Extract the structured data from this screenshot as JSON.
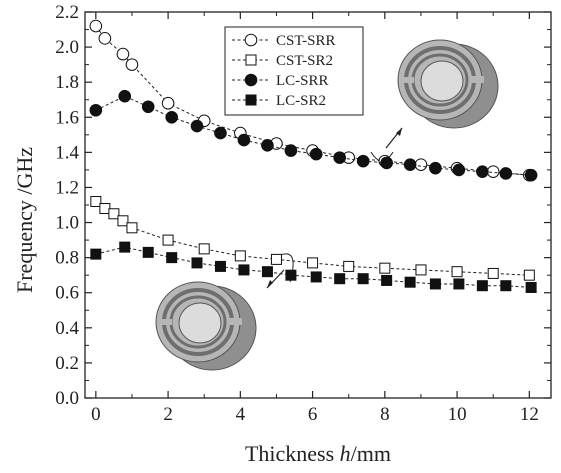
{
  "chart_data": {
    "type": "scatter",
    "xlabel_prefix": "Thickness ",
    "xlabel_var": "h",
    "xlabel_unit": "/mm",
    "ylabel": "Frequency /GHz",
    "xlim": [
      -0.3,
      12.6
    ],
    "ylim": [
      0.0,
      2.2
    ],
    "x_ticks": [
      "0",
      "2",
      "4",
      "6",
      "8",
      "10",
      "12"
    ],
    "y_ticks": [
      "0.0",
      "0.2",
      "0.4",
      "0.6",
      "0.8",
      "1.0",
      "1.2",
      "1.4",
      "1.6",
      "1.8",
      "2.0",
      "2.2"
    ],
    "legend_position": "top-center",
    "series": [
      {
        "name": "CST-SRR",
        "marker": "circle-open",
        "x": [
          0,
          0.25,
          0.75,
          1.0,
          2.0,
          3.0,
          4.0,
          5.0,
          6.0,
          7.0,
          8.0,
          9.0,
          10.0,
          11.0,
          12.0
        ],
        "y": [
          2.12,
          2.05,
          1.96,
          1.9,
          1.68,
          1.58,
          1.51,
          1.45,
          1.41,
          1.37,
          1.35,
          1.33,
          1.31,
          1.29,
          1.27
        ]
      },
      {
        "name": "CST-SR2",
        "marker": "square-open",
        "x": [
          0,
          0.25,
          0.5,
          0.75,
          1.0,
          2.0,
          3.0,
          4.0,
          5.0,
          6.0,
          7.0,
          8.0,
          9.0,
          10.0,
          11.0,
          12.0
        ],
        "y": [
          1.12,
          1.08,
          1.05,
          1.01,
          0.97,
          0.9,
          0.85,
          0.81,
          0.79,
          0.77,
          0.75,
          0.74,
          0.73,
          0.72,
          0.71,
          0.7
        ]
      },
      {
        "name": "LC-SRR",
        "marker": "circle-filled",
        "x": [
          0,
          0.8,
          1.45,
          2.1,
          2.8,
          3.45,
          4.1,
          4.75,
          5.4,
          6.1,
          6.75,
          7.4,
          8.05,
          8.7,
          9.4,
          10.05,
          10.7,
          11.35,
          12.05
        ],
        "y": [
          1.64,
          1.72,
          1.66,
          1.6,
          1.55,
          1.51,
          1.47,
          1.44,
          1.41,
          1.39,
          1.37,
          1.35,
          1.34,
          1.33,
          1.31,
          1.3,
          1.29,
          1.28,
          1.27
        ]
      },
      {
        "name": "LC-SR2",
        "marker": "square-filled",
        "x": [
          0,
          0.8,
          1.45,
          2.1,
          2.8,
          3.45,
          4.1,
          4.75,
          5.4,
          6.1,
          6.75,
          7.4,
          8.05,
          8.7,
          9.4,
          10.05,
          10.7,
          11.35,
          12.05
        ],
        "y": [
          0.82,
          0.86,
          0.83,
          0.8,
          0.77,
          0.75,
          0.73,
          0.72,
          0.7,
          0.69,
          0.68,
          0.68,
          0.67,
          0.66,
          0.65,
          0.65,
          0.64,
          0.64,
          0.63
        ]
      }
    ],
    "insets": [
      {
        "name": "split-ring-resonator-3d",
        "rings": 2
      },
      {
        "name": "split-ring-resonator-3d",
        "rings": 2
      }
    ]
  }
}
